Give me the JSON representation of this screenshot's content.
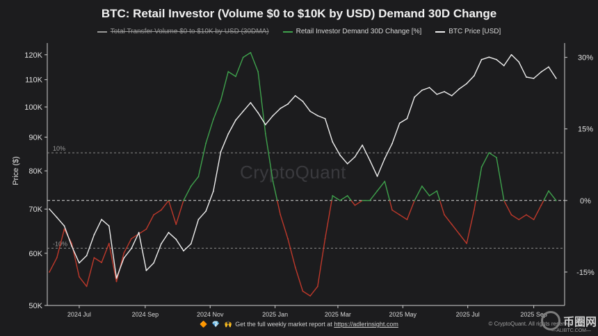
{
  "title": "BTC: Retail Investor (Volume $0 to $10K by USD) Demand 30D Change",
  "legend": [
    {
      "label": "Total Transfer Volume $0 to $10K by USD (30DMA)",
      "color": "#9a9a9a",
      "disabled": true
    },
    {
      "label": "Retail Investor Demand 30D Change [%]",
      "color": "#3fa34d",
      "disabled": false
    },
    {
      "label": "BTC Price [USD]",
      "color": "#f0f0f0",
      "disabled": false
    }
  ],
  "watermark": "CryptoQuant",
  "footer": {
    "prefix": "🔶 💎 🙌",
    "text": "Get the full weekly market report at",
    "link": "https://adlerinsight.com"
  },
  "credit": "© CryptoQuant. All rights reserved",
  "corner_logo": {
    "text": "币圈网",
    "sub": "—ALIBTC.COM—"
  },
  "chart_data": {
    "type": "line",
    "x_ticks": [
      "2024 Jul",
      "2024 Sep",
      "2024 Nov",
      "2025 Jan",
      "2025 Mar",
      "2025 May",
      "2025 Jul",
      "2025 Sep"
    ],
    "x_range": [
      "2024-06-01",
      "2025-09-30"
    ],
    "y_left": {
      "label": "Price ($)",
      "scale": "log",
      "range": [
        50000,
        125000
      ],
      "ticks": [
        50000,
        60000,
        70000,
        80000,
        90000,
        100000,
        110000,
        120000
      ],
      "tick_labels": [
        "50K",
        "60K",
        "70K",
        "80K",
        "90K",
        "100K",
        "110K",
        "120K"
      ]
    },
    "y_right": {
      "label": "",
      "range": [
        -22,
        33
      ],
      "ticks": [
        -15,
        0,
        15,
        30
      ],
      "tick_labels": [
        "-15%",
        "0%",
        "15%",
        "30%"
      ]
    },
    "reference_lines": [
      {
        "value": 10,
        "label": "10%"
      },
      {
        "value": 0,
        "label": ""
      },
      {
        "value": -10,
        "label": "-10%"
      }
    ],
    "grid": false,
    "legend_position": "top-center",
    "colors": {
      "positive": "#3fa34d",
      "negative": "#c0392b",
      "price": "#f0f0f0"
    },
    "series": [
      {
        "name": "BTC Price [USD]",
        "axis": "left",
        "x": [
          "2024-06-03",
          "2024-06-10",
          "2024-06-17",
          "2024-06-24",
          "2024-07-01",
          "2024-07-08",
          "2024-07-15",
          "2024-07-22",
          "2024-07-29",
          "2024-08-05",
          "2024-08-12",
          "2024-08-19",
          "2024-08-26",
          "2024-09-02",
          "2024-09-09",
          "2024-09-16",
          "2024-09-23",
          "2024-09-30",
          "2024-10-07",
          "2024-10-14",
          "2024-10-21",
          "2024-10-28",
          "2024-11-04",
          "2024-11-11",
          "2024-11-18",
          "2024-11-25",
          "2024-12-02",
          "2024-12-09",
          "2024-12-16",
          "2024-12-23",
          "2024-12-30",
          "2025-01-06",
          "2025-01-13",
          "2025-01-20",
          "2025-01-27",
          "2025-02-03",
          "2025-02-10",
          "2025-02-17",
          "2025-02-24",
          "2025-03-03",
          "2025-03-10",
          "2025-03-17",
          "2025-03-24",
          "2025-03-31",
          "2025-04-07",
          "2025-04-14",
          "2025-04-21",
          "2025-04-28",
          "2025-05-05",
          "2025-05-12",
          "2025-05-19",
          "2025-05-26",
          "2025-06-02",
          "2025-06-09",
          "2025-06-16",
          "2025-06-23",
          "2025-06-30",
          "2025-07-07",
          "2025-07-14",
          "2025-07-21",
          "2025-07-28",
          "2025-08-04",
          "2025-08-11",
          "2025-08-18",
          "2025-08-25",
          "2025-09-01",
          "2025-09-08",
          "2025-09-15",
          "2025-09-22"
        ],
        "values": [
          70000,
          68000,
          66000,
          61500,
          58000,
          59500,
          64000,
          67500,
          66000,
          55000,
          59000,
          61000,
          64500,
          56500,
          58000,
          62000,
          64500,
          63000,
          60500,
          62000,
          67500,
          69500,
          74500,
          85500,
          91000,
          95500,
          98500,
          101500,
          98000,
          94000,
          97000,
          99500,
          101000,
          104000,
          102000,
          98500,
          97000,
          96000,
          88500,
          84500,
          82000,
          84000,
          87500,
          83000,
          78500,
          83500,
          88000,
          94500,
          96000,
          103500,
          106000,
          107000,
          104500,
          105500,
          104000,
          106500,
          108500,
          111500,
          118000,
          119000,
          118000,
          115500,
          120000,
          117000,
          111000,
          110500,
          113000,
          115000,
          110500
        ]
      },
      {
        "name": "Retail Investor Demand 30D Change [%]",
        "axis": "right",
        "x": [
          "2024-06-03",
          "2024-06-10",
          "2024-06-17",
          "2024-06-24",
          "2024-07-01",
          "2024-07-08",
          "2024-07-15",
          "2024-07-22",
          "2024-07-29",
          "2024-08-05",
          "2024-08-12",
          "2024-08-19",
          "2024-08-26",
          "2024-09-02",
          "2024-09-09",
          "2024-09-16",
          "2024-09-23",
          "2024-09-30",
          "2024-10-07",
          "2024-10-14",
          "2024-10-21",
          "2024-10-28",
          "2024-11-04",
          "2024-11-11",
          "2024-11-18",
          "2024-11-25",
          "2024-12-02",
          "2024-12-09",
          "2024-12-16",
          "2024-12-23",
          "2024-12-30",
          "2025-01-06",
          "2025-01-13",
          "2025-01-20",
          "2025-01-27",
          "2025-02-03",
          "2025-02-10",
          "2025-02-17",
          "2025-02-24",
          "2025-03-03",
          "2025-03-10",
          "2025-03-17",
          "2025-03-24",
          "2025-03-31",
          "2025-04-07",
          "2025-04-14",
          "2025-04-21",
          "2025-04-28",
          "2025-05-05",
          "2025-05-12",
          "2025-05-19",
          "2025-05-26",
          "2025-06-02",
          "2025-06-09",
          "2025-06-16",
          "2025-06-23",
          "2025-06-30",
          "2025-07-07",
          "2025-07-14",
          "2025-07-21",
          "2025-07-28",
          "2025-08-04",
          "2025-08-11",
          "2025-08-18",
          "2025-08-25",
          "2025-09-01",
          "2025-09-08",
          "2025-09-15",
          "2025-09-22"
        ],
        "values": [
          -15,
          -12,
          -6,
          -9,
          -16,
          -18,
          -12,
          -13,
          -9,
          -17,
          -11,
          -8,
          -7,
          -6,
          -3,
          -2,
          0,
          -5,
          0,
          3,
          5,
          12,
          17,
          21,
          27,
          26,
          30,
          31,
          27,
          14,
          4,
          -3,
          -8,
          -14,
          -19,
          -20,
          -18,
          -8,
          1,
          0,
          1,
          -1,
          0,
          0,
          2,
          4,
          -2,
          -3,
          -4,
          0,
          3,
          1,
          2,
          -3,
          -5,
          -7,
          -9,
          -2,
          7,
          10,
          9,
          0,
          -3,
          -4,
          -3,
          -4,
          -1,
          2,
          0
        ]
      }
    ]
  }
}
